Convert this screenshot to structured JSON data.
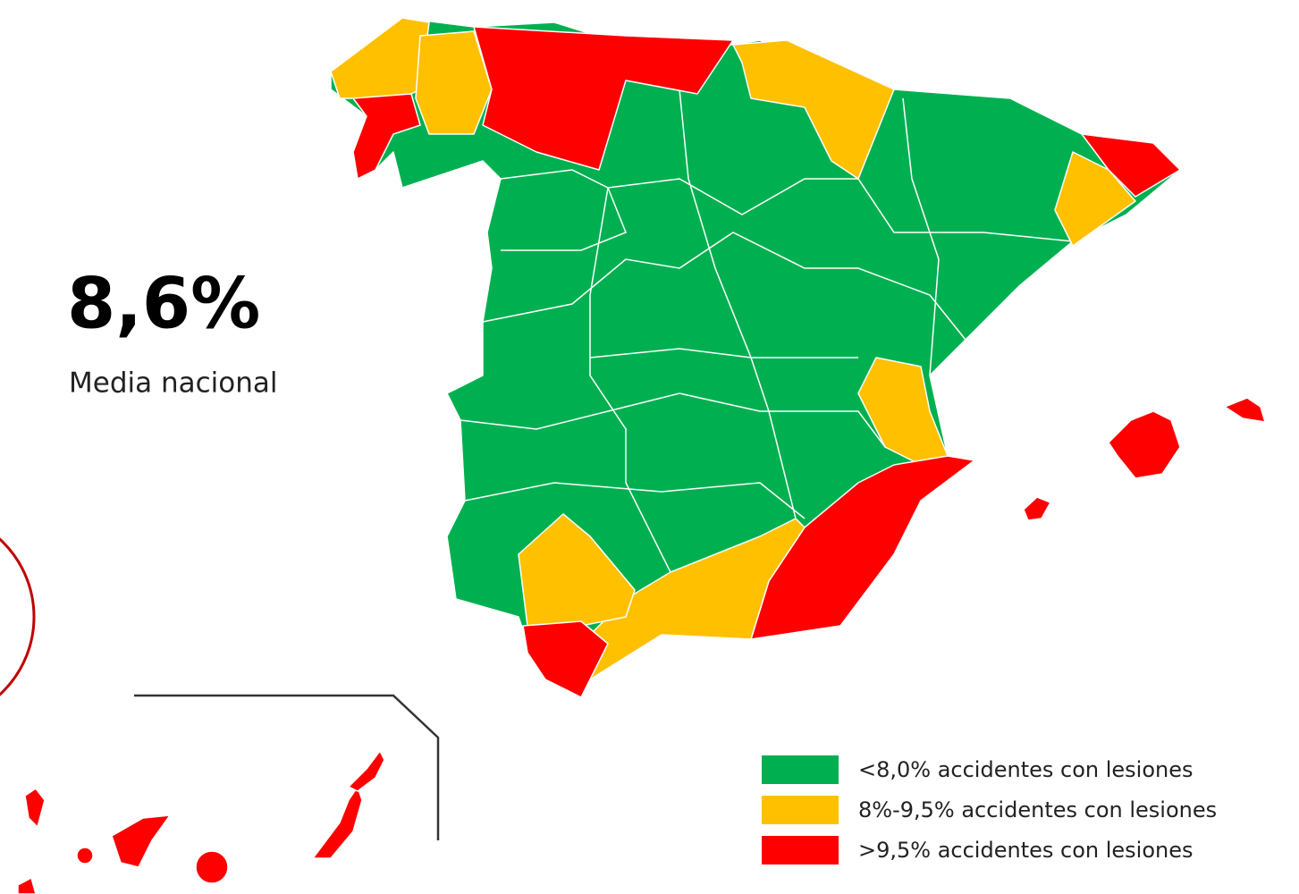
{
  "headline": {
    "value": "8,6%",
    "label": "Media nacional"
  },
  "legend": [
    {
      "label": "<8,0% accidentes con lesiones",
      "color": "#00b050"
    },
    {
      "label": "8%-9,5% accidentes con lesiones",
      "color": "#ffc000"
    },
    {
      "label": ">9,5% accidentes con lesiones",
      "color": "#ff0000"
    }
  ]
}
